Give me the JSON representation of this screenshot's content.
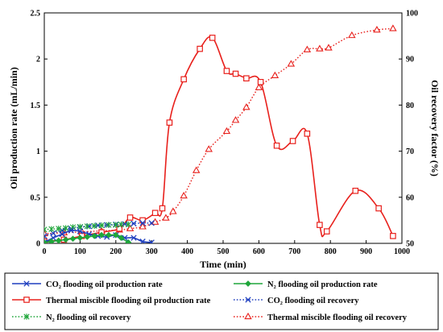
{
  "chart_data": {
    "type": "line",
    "title": "",
    "xlabel": "Time (min)",
    "ylabel_left": "Oil production rate (mL/min)",
    "ylabel_right": "Oil recovery factor (%)",
    "xlim": [
      0,
      1000
    ],
    "ylim_left": [
      0,
      2.5
    ],
    "ylim_right": [
      50,
      100
    ],
    "x_ticks": [
      "0",
      "100",
      "200",
      "300",
      "400",
      "500",
      "600",
      "700",
      "800",
      "900",
      "1000"
    ],
    "y_ticks_left": [
      "0",
      "0.5",
      "1",
      "1.5",
      "2",
      "2.5"
    ],
    "y_ticks_right": [
      "50",
      "60",
      "70",
      "80",
      "90",
      "100"
    ],
    "grid": false,
    "legend_position": "bottom",
    "series": [
      {
        "name": "CO₂ flooding oil production rate",
        "axis": "left",
        "color": "#1f3fbf",
        "marker": "x",
        "line": "solid",
        "x": [
          0,
          25,
          50,
          75,
          100,
          125,
          150,
          175,
          200,
          225,
          250,
          275,
          300
        ],
        "y": [
          0.01,
          0.06,
          0.1,
          0.14,
          0.13,
          0.1,
          0.08,
          0.07,
          0.09,
          0.06,
          0.06,
          0.02,
          0.01
        ]
      },
      {
        "name": "N₂ flooding oil production rate",
        "axis": "left",
        "color": "#1fa63a",
        "marker": "diamond",
        "line": "solid",
        "x": [
          0,
          20,
          40,
          60,
          80,
          100,
          120,
          140,
          160,
          180,
          200,
          215,
          235
        ],
        "y": [
          0.01,
          0.02,
          0.03,
          0.04,
          0.05,
          0.06,
          0.07,
          0.08,
          0.09,
          0.09,
          0.09,
          0.06,
          0.01
        ]
      },
      {
        "name": "Thermal miscible flooding oil production rate",
        "axis": "left",
        "color": "#e8201c",
        "marker": "square",
        "line": "solid",
        "x": [
          0,
          55,
          105,
          160,
          210,
          240,
          275,
          310,
          330,
          350,
          390,
          435,
          470,
          510,
          535,
          565,
          605,
          650,
          695,
          735,
          770,
          790,
          870,
          935,
          975
        ],
        "y": [
          0.02,
          0.04,
          0.08,
          0.12,
          0.16,
          0.28,
          0.25,
          0.33,
          0.38,
          1.31,
          1.78,
          2.11,
          2.23,
          1.87,
          1.84,
          1.79,
          1.75,
          1.06,
          1.11,
          1.19,
          0.2,
          0.13,
          0.57,
          0.38,
          0.08
        ]
      },
      {
        "name": "CO₂ flooding oil recovery",
        "axis": "right",
        "color": "#1f3fbf",
        "marker": "x",
        "line": "dotted",
        "x": [
          0,
          25,
          50,
          75,
          100,
          125,
          150,
          175,
          200,
          225,
          250,
          275,
          300
        ],
        "y": [
          51.6,
          52.2,
          52.8,
          53.2,
          53.5,
          53.7,
          53.9,
          54.0,
          54.1,
          54.2,
          54.3,
          54.4,
          54.4
        ]
      },
      {
        "name": "N₂ flooding oil recovery",
        "axis": "right",
        "color": "#1fa63a",
        "marker": "asterisk",
        "line": "dotted",
        "x": [
          0,
          20,
          40,
          60,
          80,
          100,
          120,
          140,
          160,
          180,
          200,
          215,
          235
        ],
        "y": [
          53.0,
          53.1,
          53.2,
          53.3,
          53.5,
          53.6,
          53.7,
          53.8,
          53.9,
          54.0,
          54.0,
          54.1,
          54.1
        ]
      },
      {
        "name": "Thermal miscible flooding oil recovery",
        "axis": "right",
        "color": "#e8201c",
        "marker": "triangle",
        "line": "dotted",
        "x": [
          0,
          55,
          105,
          160,
          210,
          240,
          275,
          310,
          340,
          360,
          390,
          425,
          460,
          510,
          535,
          565,
          600,
          645,
          690,
          735,
          770,
          795,
          860,
          930,
          975
        ],
        "y": [
          52.1,
          52.3,
          52.5,
          52.7,
          52.9,
          53.2,
          53.6,
          54.6,
          55.5,
          56.9,
          60.3,
          65.8,
          70.4,
          74.3,
          76.7,
          79.5,
          83.8,
          86.4,
          88.9,
          92.0,
          92.2,
          92.4,
          95.1,
          96.3,
          96.6
        ]
      }
    ]
  }
}
